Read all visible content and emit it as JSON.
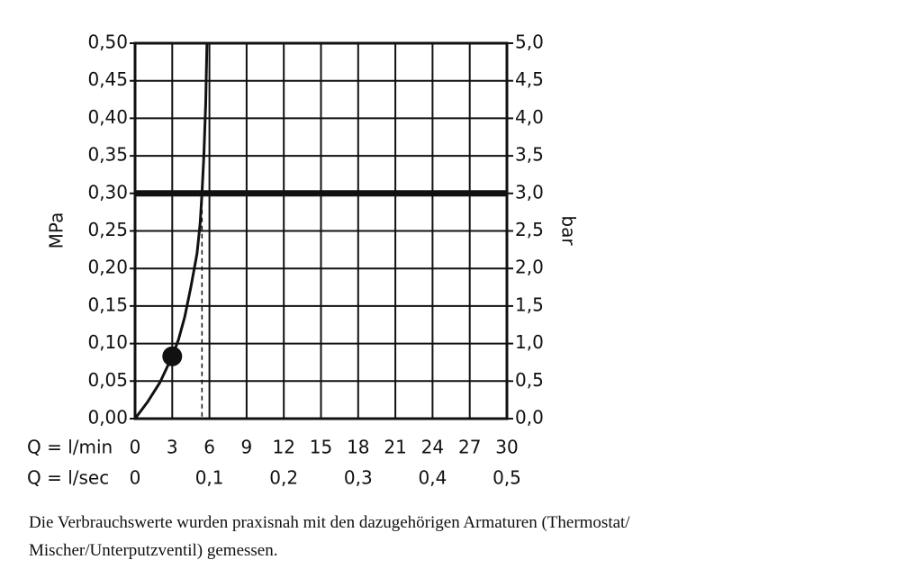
{
  "chart_data": {
    "type": "line",
    "xlabel": "Q = l/min",
    "x2label": "Q = l/sec",
    "ylabel": "MPa",
    "y2label": "bar",
    "xlim": [
      0,
      30
    ],
    "xticks": [
      0,
      3,
      6,
      9,
      12,
      15,
      18,
      21,
      24,
      27,
      30
    ],
    "x2lim": [
      0,
      0.5
    ],
    "x2ticks": [
      {
        "value": 0,
        "label": "0"
      },
      {
        "value": 0.1,
        "label": "0,1"
      },
      {
        "value": 0.2,
        "label": "0,2"
      },
      {
        "value": 0.3,
        "label": "0,3"
      },
      {
        "value": 0.4,
        "label": "0,4"
      },
      {
        "value": 0.5,
        "label": "0,5"
      }
    ],
    "ylim": [
      0,
      0.5
    ],
    "yticks": [
      {
        "value": 0,
        "label": "0,00"
      },
      {
        "value": 0.05,
        "label": "0,05"
      },
      {
        "value": 0.1,
        "label": "0,10"
      },
      {
        "value": 0.15,
        "label": "0,15"
      },
      {
        "value": 0.2,
        "label": "0,20"
      },
      {
        "value": 0.25,
        "label": "0,25"
      },
      {
        "value": 0.3,
        "label": "0,30"
      },
      {
        "value": 0.35,
        "label": "0,35"
      },
      {
        "value": 0.4,
        "label": "0,40"
      },
      {
        "value": 0.45,
        "label": "0,45"
      },
      {
        "value": 0.5,
        "label": "0,50"
      }
    ],
    "y2lim": [
      0,
      5
    ],
    "y2ticks": [
      {
        "value": 0,
        "label": "0,0"
      },
      {
        "value": 0.5,
        "label": "0,5"
      },
      {
        "value": 1,
        "label": "1,0"
      },
      {
        "value": 1.5,
        "label": "1,5"
      },
      {
        "value": 2,
        "label": "2,0"
      },
      {
        "value": 2.5,
        "label": "2,5"
      },
      {
        "value": 3,
        "label": "3,0"
      },
      {
        "value": 3.5,
        "label": "3,5"
      },
      {
        "value": 4,
        "label": "4,0"
      },
      {
        "value": 4.5,
        "label": "4,5"
      },
      {
        "value": 5,
        "label": "5,0"
      }
    ],
    "grid": true,
    "series": [
      {
        "color": "#111111",
        "x": [
          0,
          1,
          2,
          3,
          3.5,
          4,
          4.5,
          5,
          5.25,
          5.4,
          5.55,
          5.7,
          5.8
        ],
        "values": [
          0,
          0.022,
          0.048,
          0.083,
          0.105,
          0.135,
          0.175,
          0.22,
          0.26,
          0.3,
          0.35,
          0.42,
          0.5
        ]
      }
    ],
    "marker": {
      "x": 3,
      "y": 0.083
    },
    "reference_y": 0.3,
    "reference_x": 5.4,
    "caption": [
      "Die Verbrauchswerte wurden praxisnah mit den dazugehörigen Armaturen (Thermostat/",
      "Mischer/Unterputzventil) gemessen."
    ]
  }
}
